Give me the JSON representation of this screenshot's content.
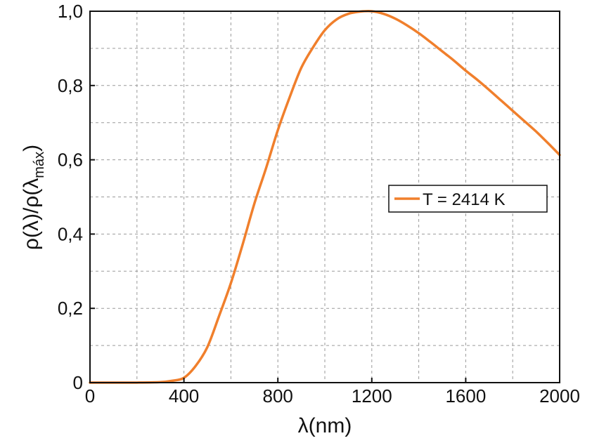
{
  "chart_data": {
    "type": "line",
    "title": "",
    "xlabel": "λ(nm)",
    "ylabel_main": "ρ(λ)/ρ(λ",
    "ylabel_sub": "máx",
    "ylabel_close": ")",
    "xlim": [
      0,
      2000
    ],
    "ylim": [
      0,
      1.0
    ],
    "x_ticks": [
      "0",
      "400",
      "800",
      "1200",
      "1600",
      "2000"
    ],
    "y_ticks": [
      "0",
      "0,2",
      "0,4",
      "0,6",
      "0,8",
      "1,0"
    ],
    "grid": true,
    "legend_position": "center-right",
    "colors": {
      "series": "#f07f2c",
      "grid": "#9a9a9a",
      "axes": "#111111"
    },
    "series": [
      {
        "name": "T = 2414 K",
        "x": [
          0,
          100,
          200,
          300,
          350,
          400,
          450,
          500,
          550,
          600,
          650,
          700,
          750,
          800,
          850,
          900,
          950,
          1000,
          1050,
          1100,
          1150,
          1200,
          1250,
          1300,
          1350,
          1400,
          1450,
          1500,
          1550,
          1600,
          1650,
          1700,
          1750,
          1800,
          1850,
          1900,
          1950,
          2000
        ],
        "y": [
          0,
          0,
          0.0001,
          0.0014,
          0.005,
          0.013,
          0.045,
          0.096,
          0.18,
          0.268,
          0.372,
          0.482,
          0.578,
          0.68,
          0.768,
          0.848,
          0.903,
          0.949,
          0.978,
          0.993,
          0.999,
          1.0,
          0.993,
          0.98,
          0.962,
          0.941,
          0.917,
          0.892,
          0.867,
          0.84,
          0.815,
          0.788,
          0.76,
          0.732,
          0.704,
          0.676,
          0.645,
          0.613
        ]
      }
    ]
  }
}
